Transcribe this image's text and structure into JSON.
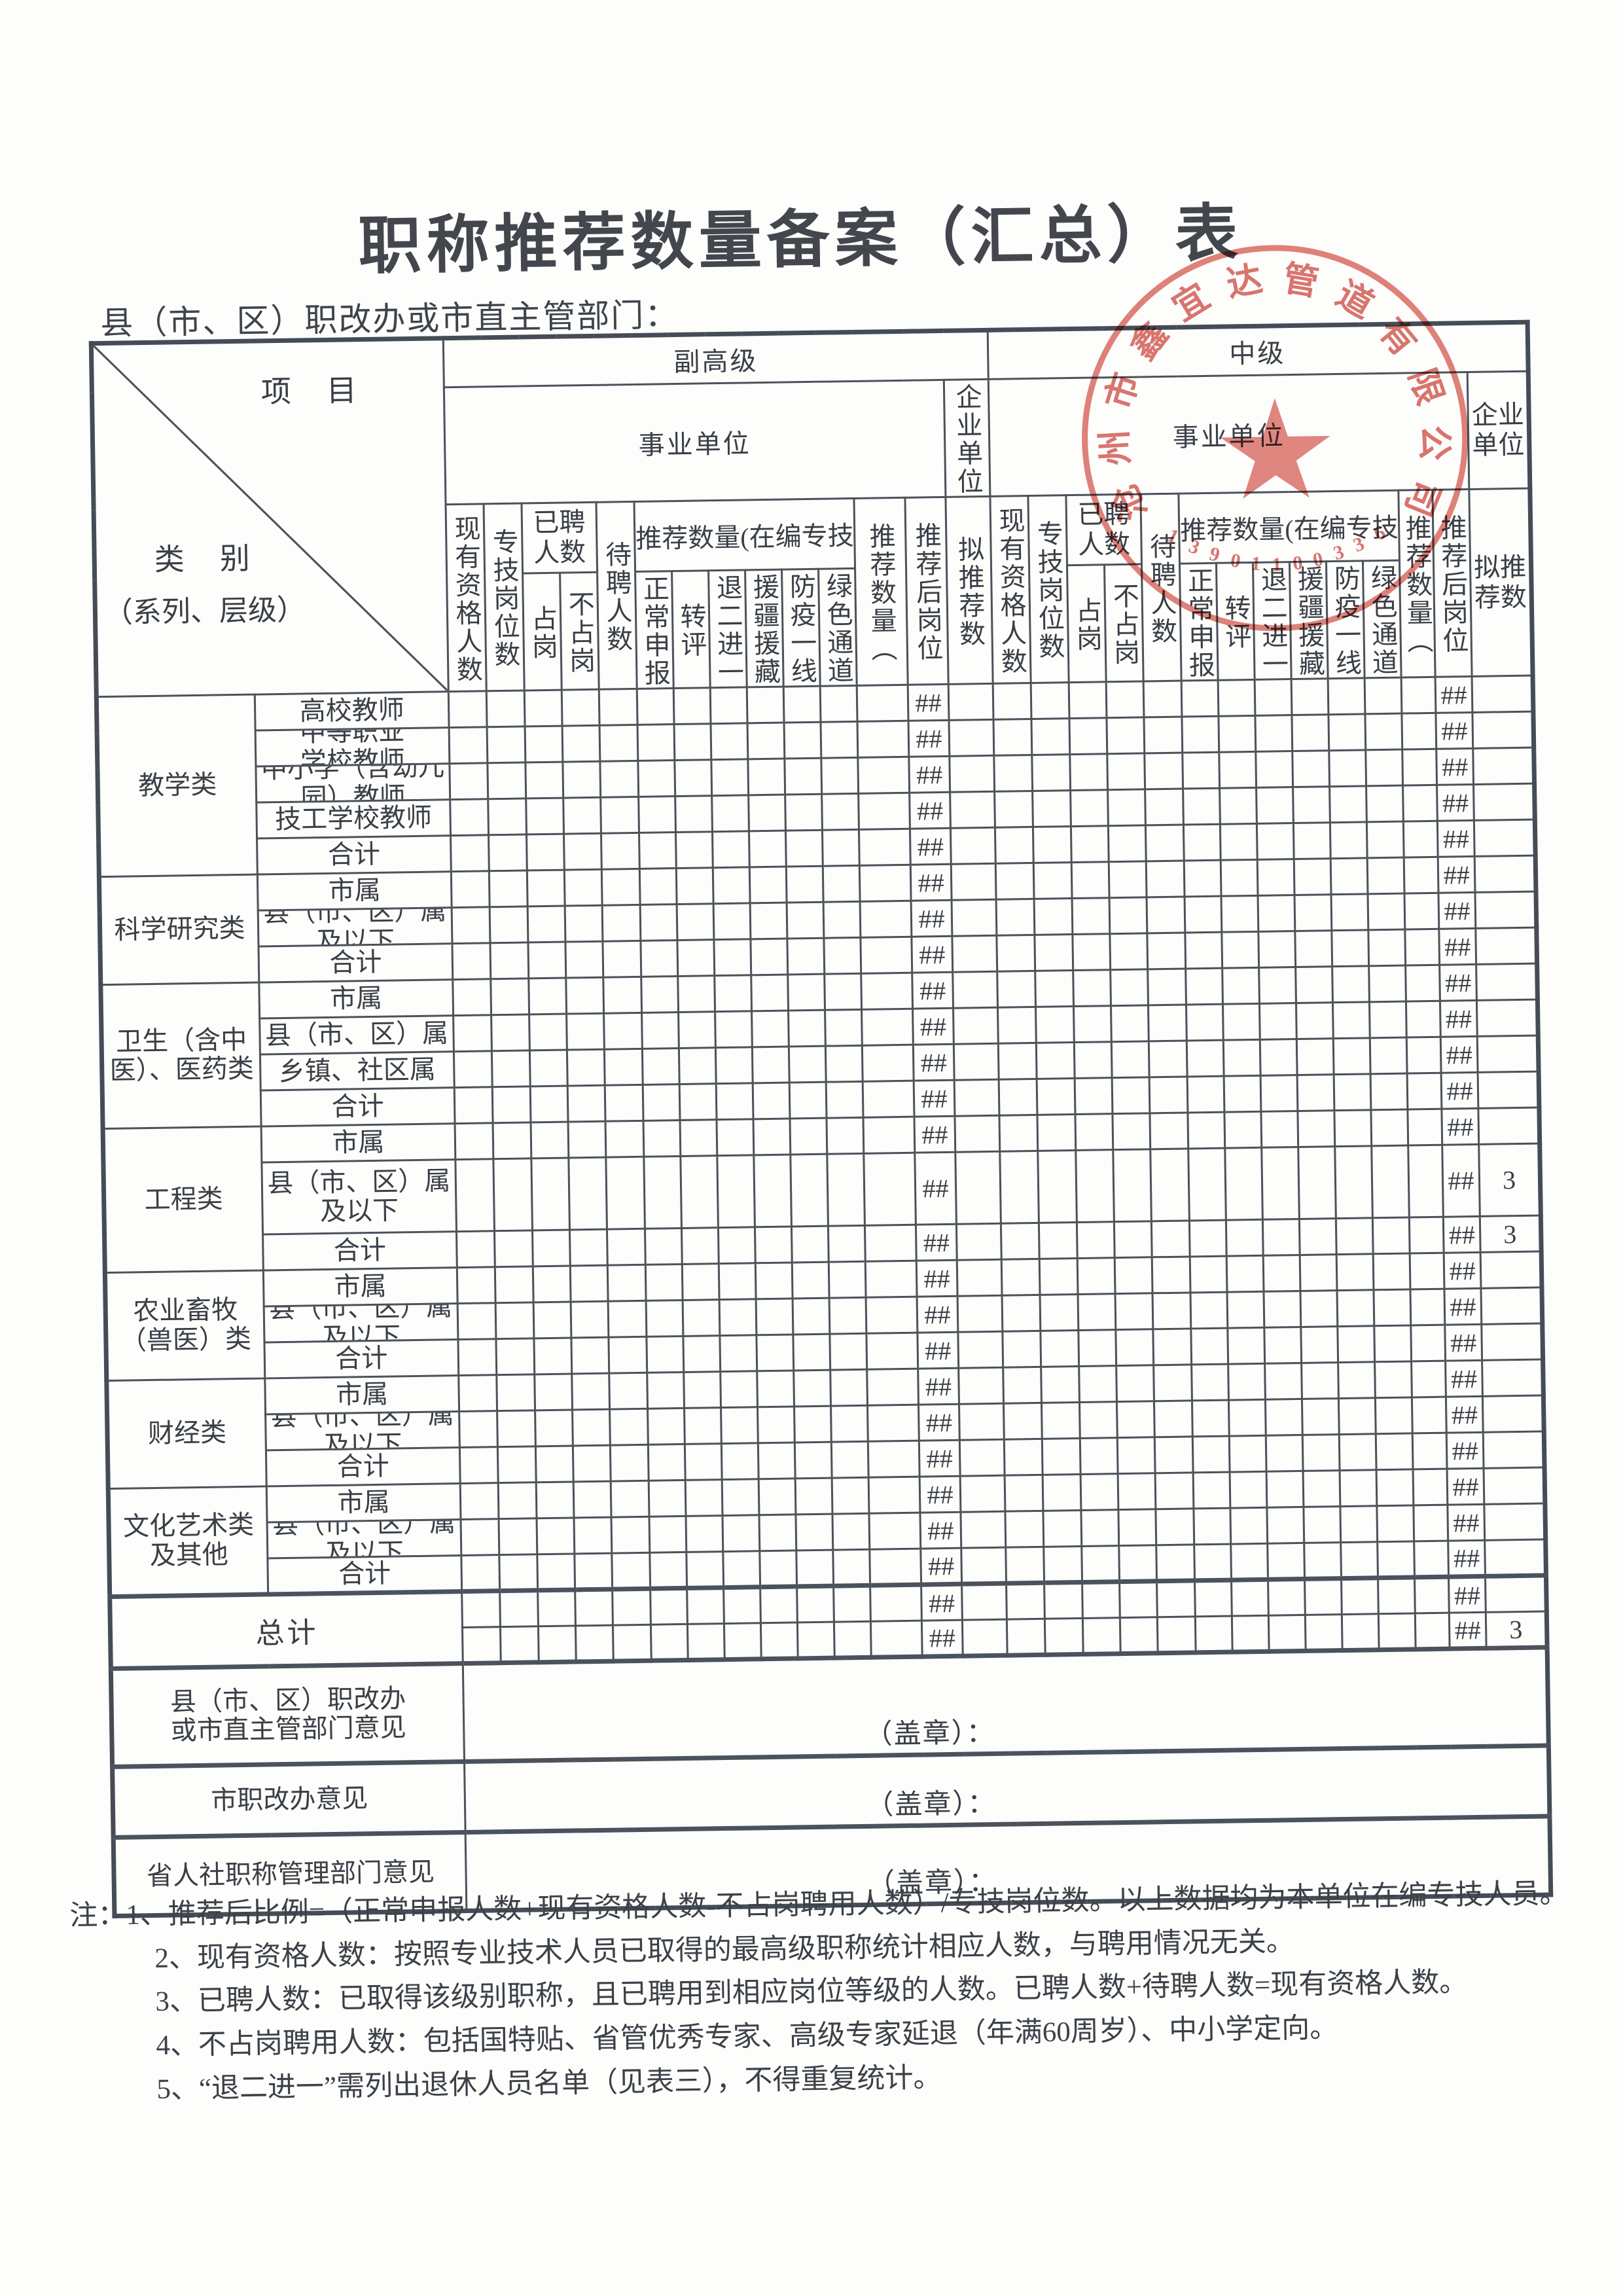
{
  "page": {
    "title": "职称推荐数量备案（汇总）表",
    "subtitle": "县（市、区）职改办或市直主管部门："
  },
  "header": {
    "project_label": "项　目",
    "category_label": "类　别",
    "category_sub": "（系列、层级）",
    "level_senior": "副高级",
    "level_middle": "中级",
    "unit_business": "事业单位",
    "unit_enterprise": "企业单位",
    "cols": {
      "existing": "现有资格人数",
      "post": "专技岗位数",
      "hired": "已聘人数",
      "hired_on": "占岗",
      "hired_off": "不占岗",
      "pending": "待聘人数",
      "recommend_group": "推荐数量(在编专技",
      "normal": "正常申报",
      "transfer": "转评",
      "retire_two": "退二进一",
      "aid_xinjiang": "援疆援藏",
      "epidemic": "防疫一线",
      "green": "绿色通道",
      "rec_total": "推荐数量（",
      "after_ratio": "推荐后岗位",
      "proposed": "拟推荐数"
    }
  },
  "body": {
    "overflow_mark": "##",
    "groups": [
      {
        "category": "教学类",
        "rows": [
          {
            "label": "高校教师"
          },
          {
            "label": "中等职业\n学校教师"
          },
          {
            "label": "中小学（含幼儿\n园）教师"
          },
          {
            "label": "技工学校教师"
          },
          {
            "label": "合计"
          }
        ]
      },
      {
        "category": "科学研究类",
        "rows": [
          {
            "label": "市属"
          },
          {
            "label": "县（市、区）属\n及以下"
          },
          {
            "label": "合计"
          }
        ]
      },
      {
        "category": "卫生（含中\n医）、医药类",
        "rows": [
          {
            "label": "市属"
          },
          {
            "label": "县（市、区）属"
          },
          {
            "label": "乡镇、社区属"
          },
          {
            "label": "合计"
          }
        ]
      },
      {
        "category": "工程类",
        "rows": [
          {
            "label": "市属"
          },
          {
            "label": "县（市、区）属\n及以下",
            "tall": true,
            "qiye_mid": "3"
          },
          {
            "label": "合计",
            "qiye_mid": "3"
          }
        ]
      },
      {
        "category": "农业畜牧\n（兽医）类",
        "rows": [
          {
            "label": "市属"
          },
          {
            "label": "县（市、区）属\n及以下"
          },
          {
            "label": "合计"
          }
        ]
      },
      {
        "category": "财经类",
        "rows": [
          {
            "label": "市属"
          },
          {
            "label": "县（市、区）属\n及以下"
          },
          {
            "label": "合计"
          }
        ]
      },
      {
        "category": "文化艺术类\n及其他",
        "rows": [
          {
            "label": "市属"
          },
          {
            "label": "县（市、区）属\n及以下"
          },
          {
            "label": "合计"
          }
        ]
      },
      {
        "category": "总计",
        "total": true,
        "rows": [
          {
            "label": ""
          },
          {
            "label": "",
            "qiye_mid": "3"
          }
        ]
      }
    ]
  },
  "opinions": [
    {
      "label": "县（市、区）职改办\n或市直主管部门意见",
      "seal": "（盖章）："
    },
    {
      "label": "市职改办意见",
      "seal": "（盖章）："
    },
    {
      "label": "省人社职称管理部门意见",
      "seal": "（盖章）："
    }
  ],
  "notes": [
    "注：1、推荐后比例=（正常申报人数+现有资格人数-不占岗聘用人数）/专技岗位数。以上数据均为本单位在编专技人员。",
    "2、现有资格人数：按照专业技术人员已取得的最高级职称统计相应人数，与聘用情况无关。",
    "3、已聘人数：已取得该级别职称，且已聘用到相应岗位等级的人数。已聘人数+待聘人数=现有资格人数。",
    "4、不占岗聘用人数：包括国特贴、省管优秀专家、高级专家延退（年满60周岁）、中小学定向。",
    "5、“退二进一”需列出退休人员名单（见表三），不得重复统计。"
  ],
  "stamp": {
    "company": "沧州市鑫宜达管道有限公司",
    "number": "13901100336",
    "color": "#c83e35"
  }
}
